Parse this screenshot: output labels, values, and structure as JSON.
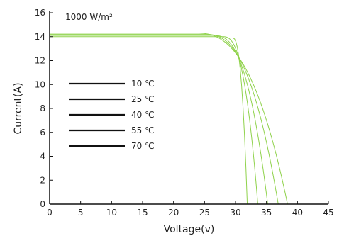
{
  "chart_data": {
    "type": "line",
    "title": "",
    "xlabel": "Voltage(v)",
    "ylabel": "Current(A)",
    "xlim": [
      0,
      45
    ],
    "ylim": [
      0,
      16
    ],
    "xticks": [
      0,
      5,
      10,
      15,
      20,
      25,
      30,
      35,
      40,
      45
    ],
    "yticks": [
      0,
      2,
      4,
      6,
      8,
      10,
      12,
      14,
      16
    ],
    "grid": false,
    "annotation": "1000 W/m²",
    "curve_color": "#8fd24b",
    "legend_line_color": "#111111",
    "legend_placement": "left",
    "series": [
      {
        "name": "10 ℃",
        "isc": 14.3,
        "knee_v": 23.5,
        "voc": 38.4
      },
      {
        "name": "25 ℃",
        "isc": 14.2,
        "knee_v": 25.0,
        "voc": 36.9
      },
      {
        "name": "40 ℃",
        "isc": 14.1,
        "knee_v": 26.5,
        "voc": 35.2
      },
      {
        "name": "55 ℃",
        "isc": 14.0,
        "knee_v": 28.0,
        "voc": 33.6
      },
      {
        "name": "70 ℃",
        "isc": 13.9,
        "knee_v": 29.5,
        "voc": 31.9
      }
    ]
  }
}
